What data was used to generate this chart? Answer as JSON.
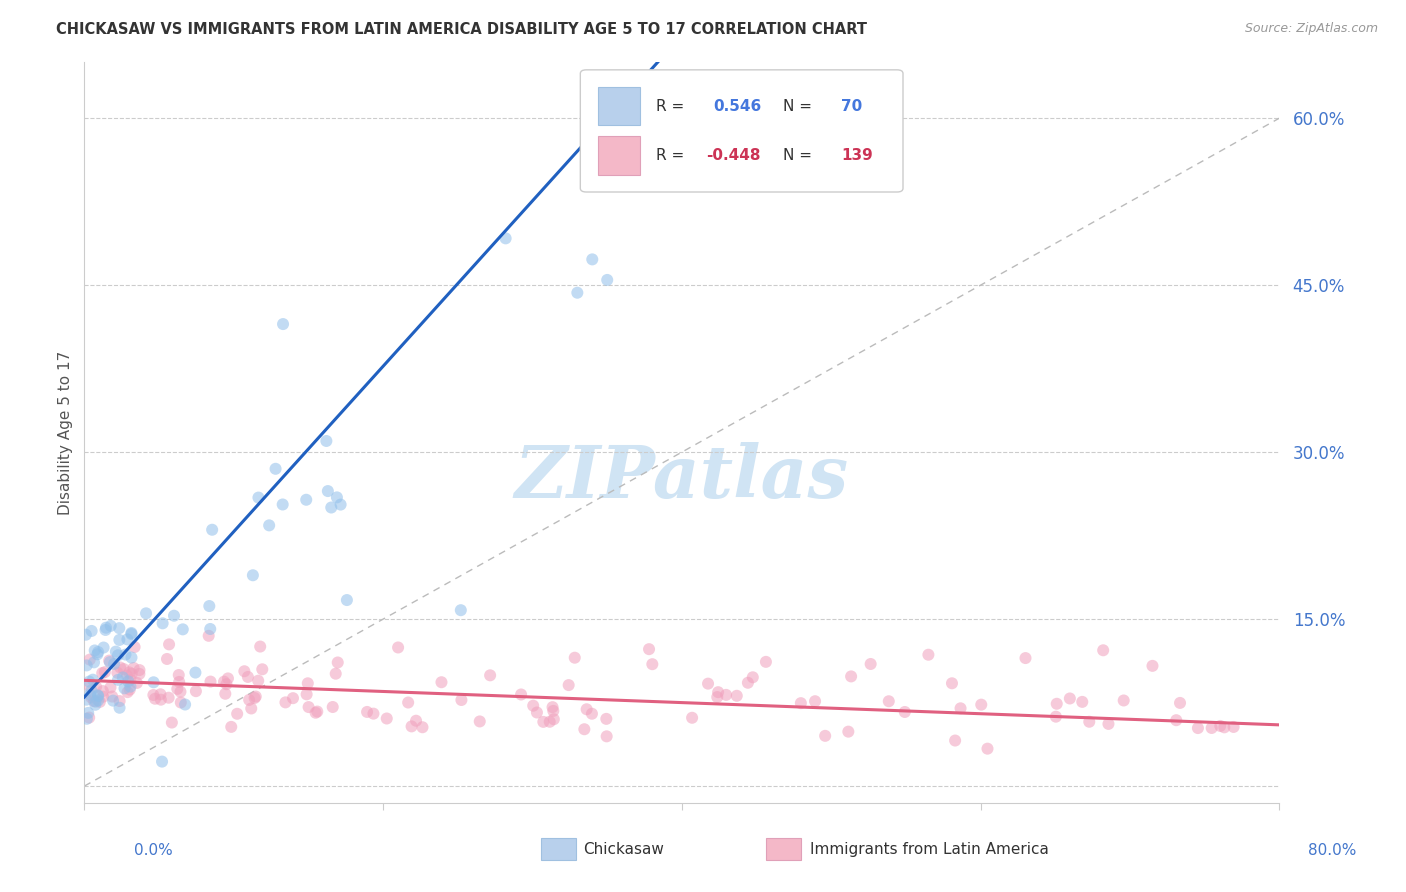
{
  "title": "CHICKASAW VS IMMIGRANTS FROM LATIN AMERICA DISABILITY AGE 5 TO 17 CORRELATION CHART",
  "source": "Source: ZipAtlas.com",
  "ylabel": "Disability Age 5 to 17",
  "ytick_values": [
    0.0,
    0.15,
    0.3,
    0.45,
    0.6
  ],
  "ytick_labels": [
    "",
    "15.0%",
    "30.0%",
    "45.0%",
    "60.0%"
  ],
  "xlim": [
    0.0,
    0.8
  ],
  "ylim": [
    -0.015,
    0.65
  ],
  "legend1_color_box": "#B8D0EC",
  "legend2_color_box": "#F4B8C8",
  "chickasaw_color": "#90BFEA",
  "immigrants_color": "#F0A0BC",
  "trendline_blue_color": "#2060C0",
  "trendline_pink_color": "#E06080",
  "trendline_dashed_color": "#BBBBBB",
  "watermark": "ZIPatlas",
  "watermark_color": "#D0E4F4",
  "chickasaw_R": 0.546,
  "chickasaw_N": 70,
  "immigrants_R": -0.448,
  "immigrants_N": 139
}
